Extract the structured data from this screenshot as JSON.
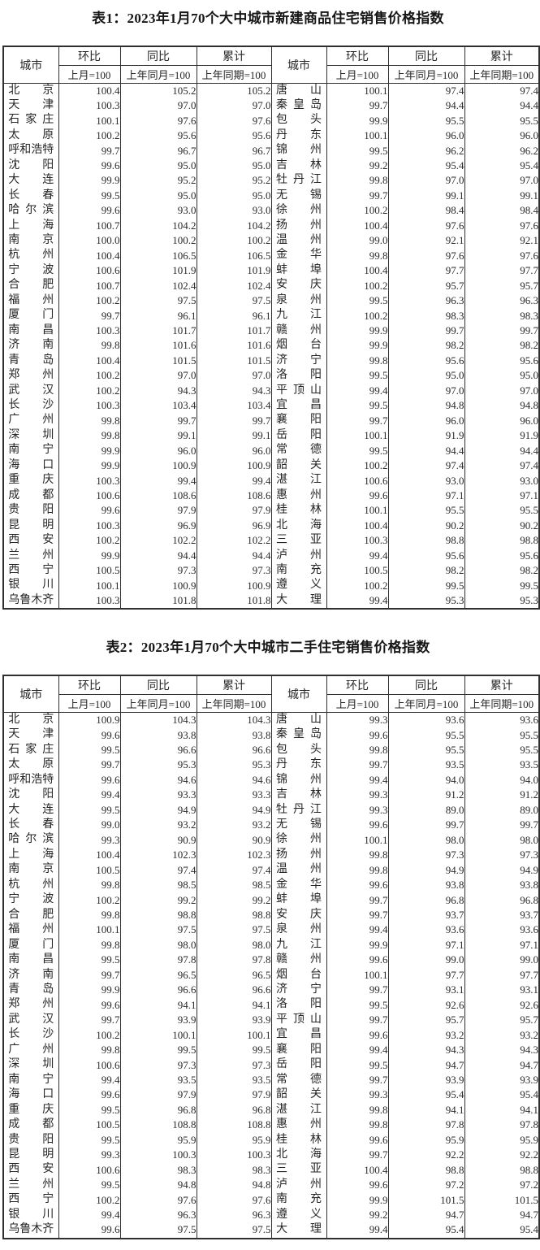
{
  "tables": [
    {
      "id": "table1",
      "title": "表1：2023年1月70个大中城市新建商品住宅销售价格指数",
      "city_header": "城市",
      "col_groups": [
        {
          "label": "环比",
          "sub": "上月=100"
        },
        {
          "label": "同比",
          "sub": "上年同月=100"
        },
        {
          "label": "累计",
          "sub": "上年同期=100"
        }
      ],
      "rows": [
        [
          "北京",
          "100.4",
          "105.2",
          "105.2",
          "唐山",
          "100.1",
          "97.4",
          "97.4"
        ],
        [
          "天津",
          "100.3",
          "97.0",
          "97.0",
          "秦皇岛",
          "99.7",
          "94.4",
          "94.4"
        ],
        [
          "石家庄",
          "100.1",
          "97.6",
          "97.6",
          "包头",
          "99.9",
          "95.5",
          "95.5"
        ],
        [
          "太原",
          "100.2",
          "95.6",
          "95.6",
          "丹东",
          "100.1",
          "96.0",
          "96.0"
        ],
        [
          "呼和浩特",
          "99.7",
          "96.7",
          "96.7",
          "锦州",
          "99.5",
          "96.2",
          "96.2"
        ],
        [
          "沈阳",
          "99.6",
          "95.0",
          "95.0",
          "吉林",
          "99.2",
          "95.4",
          "95.4"
        ],
        [
          "大连",
          "99.9",
          "95.2",
          "95.2",
          "牡丹江",
          "99.8",
          "97.0",
          "97.0"
        ],
        [
          "长春",
          "99.5",
          "95.0",
          "95.0",
          "无锡",
          "99.7",
          "99.1",
          "99.1"
        ],
        [
          "哈尔滨",
          "99.6",
          "93.0",
          "93.0",
          "徐州",
          "100.2",
          "98.4",
          "98.4"
        ],
        [
          "上海",
          "100.7",
          "104.2",
          "104.2",
          "扬州",
          "100.4",
          "97.6",
          "97.6"
        ],
        [
          "南京",
          "100.0",
          "100.2",
          "100.2",
          "温州",
          "99.0",
          "92.1",
          "92.1"
        ],
        [
          "杭州",
          "100.4",
          "106.5",
          "106.5",
          "金华",
          "99.8",
          "97.6",
          "97.6"
        ],
        [
          "宁波",
          "100.6",
          "101.9",
          "101.9",
          "蚌埠",
          "100.4",
          "97.7",
          "97.7"
        ],
        [
          "合肥",
          "100.7",
          "102.4",
          "102.4",
          "安庆",
          "100.2",
          "95.7",
          "95.7"
        ],
        [
          "福州",
          "100.2",
          "97.5",
          "97.5",
          "泉州",
          "99.5",
          "96.3",
          "96.3"
        ],
        [
          "厦门",
          "99.7",
          "96.1",
          "96.1",
          "九江",
          "100.2",
          "98.3",
          "98.3"
        ],
        [
          "南昌",
          "100.3",
          "101.7",
          "101.7",
          "赣州",
          "99.9",
          "99.7",
          "99.7"
        ],
        [
          "济南",
          "99.8",
          "101.6",
          "101.6",
          "烟台",
          "99.9",
          "98.2",
          "98.2"
        ],
        [
          "青岛",
          "100.4",
          "101.5",
          "101.5",
          "济宁",
          "99.8",
          "95.6",
          "95.6"
        ],
        [
          "郑州",
          "100.2",
          "97.0",
          "97.0",
          "洛阳",
          "99.5",
          "95.0",
          "95.0"
        ],
        [
          "武汉",
          "100.2",
          "94.3",
          "94.3",
          "平顶山",
          "99.4",
          "97.0",
          "97.0"
        ],
        [
          "长沙",
          "100.3",
          "103.4",
          "103.4",
          "宜昌",
          "99.5",
          "94.8",
          "94.8"
        ],
        [
          "广州",
          "99.8",
          "99.7",
          "99.7",
          "襄阳",
          "99.7",
          "96.0",
          "96.0"
        ],
        [
          "深圳",
          "99.8",
          "99.1",
          "99.1",
          "岳阳",
          "100.1",
          "91.9",
          "91.9"
        ],
        [
          "南宁",
          "99.9",
          "96.0",
          "96.0",
          "常德",
          "99.5",
          "94.4",
          "94.4"
        ],
        [
          "海口",
          "99.9",
          "100.9",
          "100.9",
          "韶关",
          "100.2",
          "97.4",
          "97.4"
        ],
        [
          "重庆",
          "100.3",
          "99.4",
          "99.4",
          "湛江",
          "100.6",
          "93.0",
          "93.0"
        ],
        [
          "成都",
          "100.6",
          "108.6",
          "108.6",
          "惠州",
          "99.6",
          "97.1",
          "97.1"
        ],
        [
          "贵阳",
          "99.6",
          "97.9",
          "97.9",
          "桂林",
          "100.1",
          "95.5",
          "95.5"
        ],
        [
          "昆明",
          "100.3",
          "96.9",
          "96.9",
          "北海",
          "100.4",
          "90.2",
          "90.2"
        ],
        [
          "西安",
          "100.2",
          "102.2",
          "102.2",
          "三亚",
          "100.3",
          "98.8",
          "98.8"
        ],
        [
          "兰州",
          "99.9",
          "94.4",
          "94.4",
          "泸州",
          "99.4",
          "95.6",
          "95.6"
        ],
        [
          "西宁",
          "100.5",
          "97.3",
          "97.3",
          "南充",
          "100.5",
          "98.2",
          "98.2"
        ],
        [
          "银川",
          "100.1",
          "100.9",
          "100.9",
          "遵义",
          "100.2",
          "99.5",
          "99.5"
        ],
        [
          "乌鲁木齐",
          "100.3",
          "101.8",
          "101.8",
          "大理",
          "99.4",
          "95.3",
          "95.3"
        ]
      ]
    },
    {
      "id": "table2",
      "title": "表2：2023年1月70个大中城市二手住宅销售价格指数",
      "city_header": "城市",
      "col_groups": [
        {
          "label": "环比",
          "sub": "上月=100"
        },
        {
          "label": "同比",
          "sub": "上年同月=100"
        },
        {
          "label": "累计",
          "sub": "上年同期=100"
        }
      ],
      "rows": [
        [
          "北京",
          "100.9",
          "104.3",
          "104.3",
          "唐山",
          "99.3",
          "93.6",
          "93.6"
        ],
        [
          "天津",
          "99.6",
          "93.8",
          "93.8",
          "秦皇岛",
          "99.6",
          "95.5",
          "95.5"
        ],
        [
          "石家庄",
          "99.5",
          "96.6",
          "96.6",
          "包头",
          "99.8",
          "95.5",
          "95.5"
        ],
        [
          "太原",
          "99.7",
          "95.3",
          "95.3",
          "丹东",
          "99.7",
          "93.5",
          "93.5"
        ],
        [
          "呼和浩特",
          "99.6",
          "94.6",
          "94.6",
          "锦州",
          "99.4",
          "94.0",
          "94.0"
        ],
        [
          "沈阳",
          "99.4",
          "93.3",
          "93.3",
          "吉林",
          "99.3",
          "91.2",
          "91.2"
        ],
        [
          "大连",
          "99.5",
          "94.9",
          "94.9",
          "牡丹江",
          "99.3",
          "89.0",
          "89.0"
        ],
        [
          "长春",
          "99.0",
          "93.2",
          "93.2",
          "无锡",
          "99.6",
          "99.7",
          "99.7"
        ],
        [
          "哈尔滨",
          "99.3",
          "90.9",
          "90.9",
          "徐州",
          "100.1",
          "98.0",
          "98.0"
        ],
        [
          "上海",
          "100.4",
          "102.3",
          "102.3",
          "扬州",
          "99.8",
          "97.3",
          "97.3"
        ],
        [
          "南京",
          "100.5",
          "97.4",
          "97.4",
          "温州",
          "99.8",
          "94.9",
          "94.9"
        ],
        [
          "杭州",
          "99.8",
          "98.5",
          "98.5",
          "金华",
          "99.6",
          "93.8",
          "93.8"
        ],
        [
          "宁波",
          "100.2",
          "99.2",
          "99.2",
          "蚌埠",
          "99.7",
          "96.8",
          "96.8"
        ],
        [
          "合肥",
          "99.8",
          "98.8",
          "98.8",
          "安庆",
          "99.7",
          "93.7",
          "93.7"
        ],
        [
          "福州",
          "100.1",
          "97.5",
          "97.5",
          "泉州",
          "99.4",
          "93.6",
          "93.6"
        ],
        [
          "厦门",
          "99.8",
          "98.0",
          "98.0",
          "九江",
          "99.9",
          "97.1",
          "97.1"
        ],
        [
          "南昌",
          "99.5",
          "97.8",
          "97.8",
          "赣州",
          "99.6",
          "99.0",
          "99.0"
        ],
        [
          "济南",
          "99.7",
          "96.5",
          "96.5",
          "烟台",
          "100.1",
          "97.7",
          "97.7"
        ],
        [
          "青岛",
          "99.9",
          "96.6",
          "96.6",
          "济宁",
          "99.7",
          "93.1",
          "93.1"
        ],
        [
          "郑州",
          "99.6",
          "94.1",
          "94.1",
          "洛阳",
          "99.5",
          "92.6",
          "92.6"
        ],
        [
          "武汉",
          "99.7",
          "93.9",
          "93.9",
          "平顶山",
          "99.7",
          "95.7",
          "95.7"
        ],
        [
          "长沙",
          "100.2",
          "100.1",
          "100.1",
          "宜昌",
          "99.6",
          "93.2",
          "93.2"
        ],
        [
          "广州",
          "99.8",
          "99.5",
          "99.5",
          "襄阳",
          "99.4",
          "94.3",
          "94.3"
        ],
        [
          "深圳",
          "100.6",
          "97.3",
          "97.3",
          "岳阳",
          "99.5",
          "94.7",
          "94.7"
        ],
        [
          "南宁",
          "99.4",
          "93.5",
          "93.5",
          "常德",
          "99.7",
          "93.9",
          "93.9"
        ],
        [
          "海口",
          "99.6",
          "97.9",
          "97.9",
          "韶关",
          "99.3",
          "95.4",
          "95.4"
        ],
        [
          "重庆",
          "99.5",
          "96.8",
          "96.8",
          "湛江",
          "99.8",
          "94.1",
          "94.1"
        ],
        [
          "成都",
          "100.5",
          "108.8",
          "108.8",
          "惠州",
          "99.8",
          "97.8",
          "97.8"
        ],
        [
          "贵阳",
          "99.5",
          "95.9",
          "95.9",
          "桂林",
          "99.6",
          "95.9",
          "95.9"
        ],
        [
          "昆明",
          "99.3",
          "100.3",
          "100.3",
          "北海",
          "99.7",
          "92.2",
          "92.2"
        ],
        [
          "西安",
          "100.6",
          "98.3",
          "98.3",
          "三亚",
          "100.4",
          "98.8",
          "98.8"
        ],
        [
          "兰州",
          "99.5",
          "94.8",
          "94.8",
          "泸州",
          "99.6",
          "97.2",
          "97.2"
        ],
        [
          "西宁",
          "100.2",
          "97.6",
          "97.6",
          "南充",
          "99.9",
          "101.5",
          "101.5"
        ],
        [
          "银川",
          "99.4",
          "96.3",
          "96.3",
          "遵义",
          "99.2",
          "94.7",
          "94.7"
        ],
        [
          "乌鲁木齐",
          "99.6",
          "97.5",
          "97.5",
          "大理",
          "99.4",
          "95.4",
          "95.4"
        ]
      ]
    }
  ],
  "colors": {
    "text": "#2e2e2e",
    "border": "#2f2f2f",
    "background": "#ffffff"
  }
}
